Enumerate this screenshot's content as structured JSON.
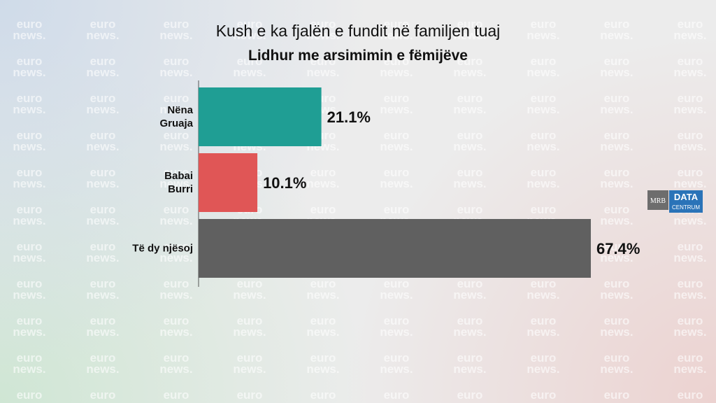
{
  "chart_data": {
    "type": "bar",
    "orientation": "horizontal",
    "title": "Kush e ka fjalën e fundit në familjen tuaj",
    "subtitle": "Lidhur me arsimimin e fëmijëve",
    "categories": [
      "Nëna\nGruaja",
      "Babai\nBurri",
      "Të dy njësoj"
    ],
    "values": [
      21.1,
      10.1,
      67.4
    ],
    "value_labels": [
      "21.1%",
      "10.1%",
      "67.4%"
    ],
    "colors": [
      "#1f9e94",
      "#e05656",
      "#606060"
    ]
  },
  "watermark": {
    "top": "euro",
    "bottom": "news."
  },
  "logo": {
    "mrb": "MRB",
    "data": "DATA",
    "centrum": "CENTRUM"
  }
}
